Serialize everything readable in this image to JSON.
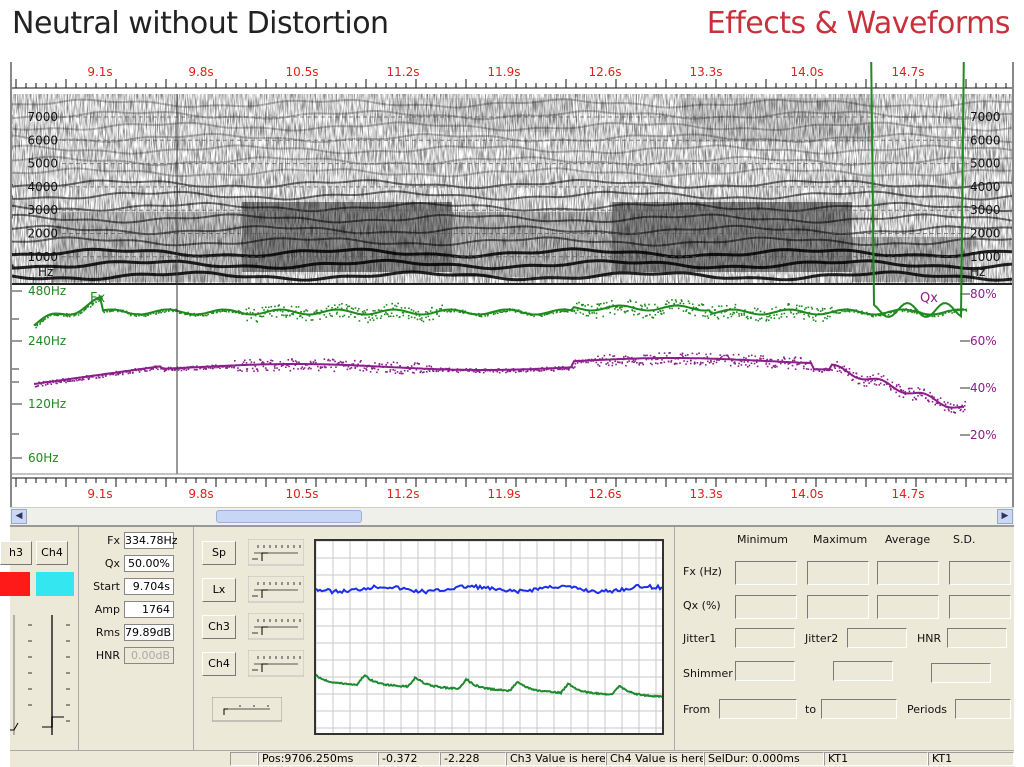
{
  "header": {
    "left_title": "Neutral without Distortion",
    "right_title": "Effects & Waveforms"
  },
  "time_axis": {
    "ticks": [
      "9.1s",
      "9.8s",
      "10.5s",
      "11.2s",
      "11.9s",
      "12.6s",
      "13.3s",
      "14.0s",
      "14.7s"
    ]
  },
  "spectrogram": {
    "freq_labels": [
      "7000",
      "6000",
      "5000",
      "4000",
      "3000",
      "2000",
      "1000"
    ],
    "unit": "Hz"
  },
  "pitch": {
    "fx_label": "Fx",
    "qx_label": "Qx",
    "left_ticks": [
      "480Hz",
      "240Hz",
      "120Hz",
      "60Hz"
    ],
    "right_ticks": [
      "80%",
      "60%",
      "40%",
      "20%"
    ],
    "colors": {
      "fx": "#1e8a1e",
      "qx": "#8a1e8a",
      "cursor": "#333333"
    }
  },
  "channels": {
    "tabs": [
      "h3",
      "Ch4"
    ],
    "colors": [
      "#ff1a1a",
      "#33e6f0"
    ]
  },
  "readouts": [
    {
      "label": "Fx",
      "value": "334.78Hz"
    },
    {
      "label": "Qx",
      "value": "50.00%"
    },
    {
      "label": "Start",
      "value": "9.704s"
    },
    {
      "label": "Amp",
      "value": "1764"
    },
    {
      "label": "Rms",
      "value": "79.89dB"
    },
    {
      "label": "HNR",
      "value": "0.00dB"
    }
  ],
  "waveform_buttons": [
    "Sp",
    "Lx",
    "Ch3",
    "Ch4"
  ],
  "waveform_colors": {
    "top": "#1c2fe8",
    "bottom": "#1e8a2e"
  },
  "stats": {
    "columns": [
      "Minimum",
      "Maximum",
      "Average",
      "S.D."
    ],
    "rows": [
      "Fx (Hz)",
      "Qx (%)"
    ],
    "jitter1": "Jitter1",
    "jitter2": "Jitter2",
    "hnr": "HNR",
    "shimmer": "Shimmer",
    "from": "From",
    "to": "to",
    "periods": "Periods"
  },
  "status_bar": {
    "pos": "Pos:9706.250ms",
    "v1": "-0.372",
    "v2": "-2.228",
    "ch3": "Ch3 Value is here",
    "ch4": "Ch4 Value is here",
    "seldur": "SelDur: 0.000ms",
    "kt1a": "KT1",
    "kt1b": "KT1"
  }
}
